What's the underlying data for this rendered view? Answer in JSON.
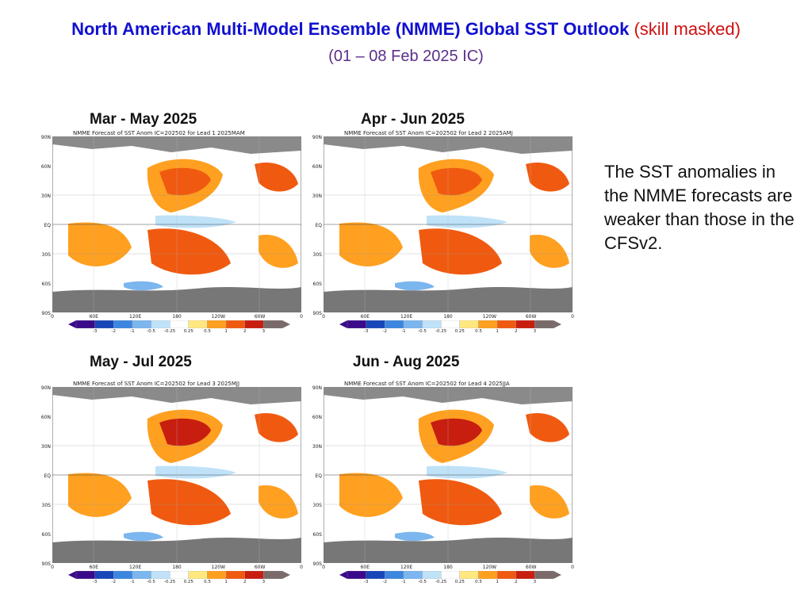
{
  "header": {
    "title": "North American Multi-Model Ensemble (NMME) Global SST Outlook",
    "title_suffix": "(skill masked)",
    "subtitle": "(01 – 08 Feb 2025 IC)"
  },
  "panels": [
    {
      "season": "Mar - May 2025",
      "map_title": "NMME Forecast of SST Anom IC=202502 for Lead 1 2025MAM"
    },
    {
      "season": "Apr - Jun 2025",
      "map_title": "NMME Forecast of SST Anom IC=202502 for Lead 2 2025AMJ"
    },
    {
      "season": "May - Jul 2025",
      "map_title": "NMME Forecast of SST Anom IC=202502 for Lead 3 2025MJJ"
    },
    {
      "season": "Jun - Aug 2025",
      "map_title": "NMME Forecast of SST Anom IC=202502 for Lead 4 2025JJA"
    }
  ],
  "axes": {
    "lat_labels": [
      "90N",
      "60N",
      "30N",
      "EQ",
      "30S",
      "60S",
      "90S"
    ],
    "lon_labels": [
      "0",
      "60E",
      "120E",
      "180",
      "120W",
      "60W",
      "0"
    ]
  },
  "colorbar": {
    "labels": [
      "-3",
      "-2",
      "-1",
      "-0.5",
      "-0.25",
      "0.25",
      "0.5",
      "1",
      "2",
      "3"
    ],
    "colors": [
      "#3a0a8a",
      "#1846b8",
      "#3c86e0",
      "#7bb6ee",
      "#bfe2f8",
      "#ffffff",
      "#ffe880",
      "#ffa020",
      "#f05a10",
      "#c81e10",
      "#7a6a6a"
    ]
  },
  "note": "The SST anomalies in the NMME forecasts are weaker than those in the CFSv2."
}
